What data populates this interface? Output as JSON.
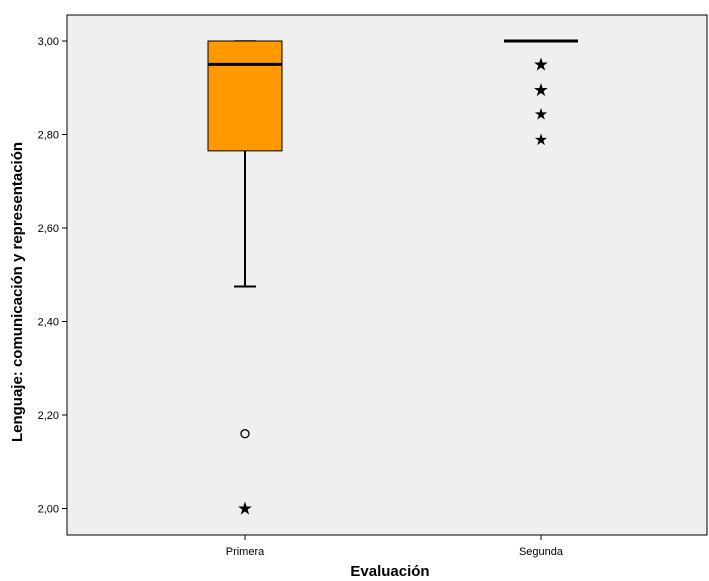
{
  "chart_data": {
    "type": "boxplot",
    "title": "",
    "xlabel": "Evaluación",
    "ylabel": "Lenguaje: comunicación y representación",
    "ylim": [
      1.95,
      3.07
    ],
    "yticks": [
      "2,00",
      "2,20",
      "2,40",
      "2,60",
      "2,80",
      "3,00"
    ],
    "grid": false,
    "background_color": "#efefef",
    "box_color": "#ff9900",
    "categories": [
      "Primera",
      "Segunda"
    ],
    "boxes": [
      {
        "category": "Primera",
        "whisker_low": 2.475,
        "q1": 2.765,
        "median": 2.95,
        "q3": 3.0,
        "whisker_high": 3.0,
        "outliers": [
          2.16
        ],
        "extremes": [
          2.0
        ]
      },
      {
        "category": "Segunda",
        "whisker_low": 3.0,
        "q1": 3.0,
        "median": 3.0,
        "q3": 3.0,
        "whisker_high": 3.0,
        "outliers": [],
        "extremes": [
          2.95,
          2.895,
          2.845,
          2.79
        ]
      }
    ]
  }
}
